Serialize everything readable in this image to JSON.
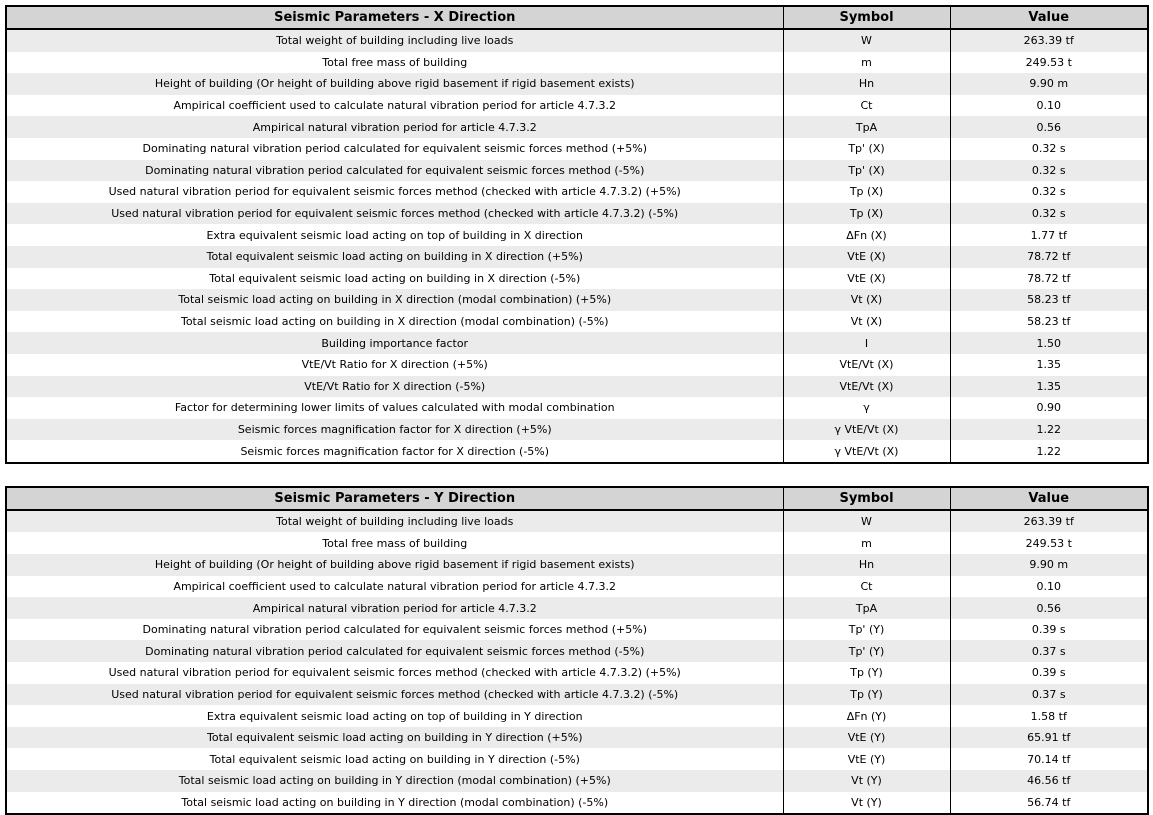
{
  "colors": {
    "header_bg": "#d4d4d4",
    "stripe_bg": "#ebebeb",
    "row_bg": "#ffffff",
    "border": "#000000",
    "text": "#000000"
  },
  "tables": [
    {
      "title": "Seismic Parameters - X Direction",
      "columns": {
        "symbol": "Symbol",
        "value": "Value"
      },
      "rows": [
        {
          "description": "Total weight of building including live loads",
          "symbol": "W",
          "value": "263.39 tf"
        },
        {
          "description": "Total free mass of building",
          "symbol": "m",
          "value": "249.53 t"
        },
        {
          "description": "Height of building (Or height of building above rigid basement if rigid basement exists)",
          "symbol": "Hn",
          "value": "9.90 m"
        },
        {
          "description": "Ampirical coefficient used to calculate natural vibration period for article 4.7.3.2",
          "symbol": "Ct",
          "value": "0.10"
        },
        {
          "description": "Ampirical natural vibration period for article 4.7.3.2",
          "symbol": "TpA",
          "value": "0.56"
        },
        {
          "description": "Dominating natural vibration period calculated for equivalent seismic forces method (+5%)",
          "symbol": "Tp' (X)",
          "value": "0.32 s"
        },
        {
          "description": "Dominating natural vibration period calculated for equivalent seismic forces method (-5%)",
          "symbol": "Tp' (X)",
          "value": "0.32 s"
        },
        {
          "description": "Used natural vibration period for equivalent seismic forces method (checked with article 4.7.3.2) (+5%)",
          "symbol": "Tp (X)",
          "value": "0.32 s"
        },
        {
          "description": "Used natural vibration period for equivalent seismic forces method (checked with article 4.7.3.2) (-5%)",
          "symbol": "Tp (X)",
          "value": "0.32 s"
        },
        {
          "description": "Extra equivalent seismic load acting on top of building in X direction",
          "symbol": "ΔFn (X)",
          "value": "1.77 tf"
        },
        {
          "description": "Total equivalent seismic load acting on building in X direction (+5%)",
          "symbol": "VtE (X)",
          "value": "78.72 tf"
        },
        {
          "description": "Total equivalent seismic load acting on building in X direction (-5%)",
          "symbol": "VtE (X)",
          "value": "78.72 tf"
        },
        {
          "description": "Total seismic load acting on building in X direction (modal combination) (+5%)",
          "symbol": "Vt (X)",
          "value": "58.23 tf"
        },
        {
          "description": "Total seismic load acting on building in X direction (modal combination) (-5%)",
          "symbol": "Vt (X)",
          "value": "58.23 tf"
        },
        {
          "description": "Building importance factor",
          "symbol": "I",
          "value": "1.50"
        },
        {
          "description": "VtE/Vt Ratio for X direction (+5%)",
          "symbol": "VtE/Vt (X)",
          "value": "1.35"
        },
        {
          "description": "VtE/Vt Ratio for X direction (-5%)",
          "symbol": "VtE/Vt (X)",
          "value": "1.35"
        },
        {
          "description": "Factor for determining lower limits of values calculated with modal combination",
          "symbol": "γ",
          "value": "0.90"
        },
        {
          "description": "Seismic forces magnification factor for X direction (+5%)",
          "symbol": "γ VtE/Vt (X)",
          "value": "1.22"
        },
        {
          "description": "Seismic forces magnification factor for X direction (-5%)",
          "symbol": "γ VtE/Vt (X)",
          "value": "1.22"
        }
      ]
    },
    {
      "title": "Seismic Parameters - Y Direction",
      "columns": {
        "symbol": "Symbol",
        "value": "Value"
      },
      "rows": [
        {
          "description": "Total weight of building including live loads",
          "symbol": "W",
          "value": "263.39 tf"
        },
        {
          "description": "Total free mass of building",
          "symbol": "m",
          "value": "249.53 t"
        },
        {
          "description": "Height of building (Or height of building above rigid basement if rigid basement exists)",
          "symbol": "Hn",
          "value": "9.90 m"
        },
        {
          "description": "Ampirical coefficient used to calculate natural vibration period for article 4.7.3.2",
          "symbol": "Ct",
          "value": "0.10"
        },
        {
          "description": "Ampirical natural vibration period for article 4.7.3.2",
          "symbol": "TpA",
          "value": "0.56"
        },
        {
          "description": "Dominating natural vibration period calculated for equivalent seismic forces method (+5%)",
          "symbol": "Tp' (Y)",
          "value": "0.39 s"
        },
        {
          "description": "Dominating natural vibration period calculated for equivalent seismic forces method (-5%)",
          "symbol": "Tp' (Y)",
          "value": "0.37 s"
        },
        {
          "description": "Used natural vibration period for equivalent seismic forces method (checked with article 4.7.3.2) (+5%)",
          "symbol": "Tp (Y)",
          "value": "0.39 s"
        },
        {
          "description": "Used natural vibration period for equivalent seismic forces method (checked with article 4.7.3.2) (-5%)",
          "symbol": "Tp (Y)",
          "value": "0.37 s"
        },
        {
          "description": "Extra equivalent seismic load acting on top of building in Y direction",
          "symbol": "ΔFn (Y)",
          "value": "1.58 tf"
        },
        {
          "description": "Total equivalent seismic load acting on building in Y direction (+5%)",
          "symbol": "VtE (Y)",
          "value": "65.91 tf"
        },
        {
          "description": "Total equivalent seismic load acting on building in Y direction (-5%)",
          "symbol": "VtE (Y)",
          "value": "70.14 tf"
        },
        {
          "description": "Total seismic load acting on building in Y direction (modal combination) (+5%)",
          "symbol": "Vt (Y)",
          "value": "46.56 tf"
        },
        {
          "description": "Total seismic load acting on building in Y direction (modal combination) (-5%)",
          "symbol": "Vt (Y)",
          "value": "56.74 tf"
        }
      ]
    }
  ]
}
